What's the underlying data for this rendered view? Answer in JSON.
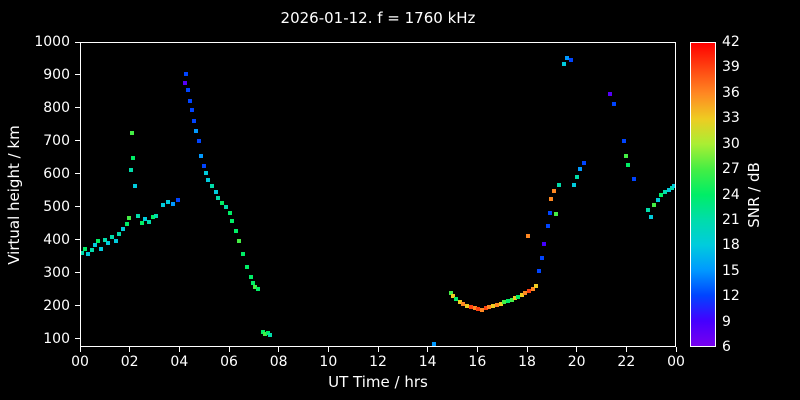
{
  "chart_data": {
    "type": "scatter",
    "title": "2026-01-12. f = 1760 kHz",
    "xlabel": "UT Time / hrs",
    "ylabel": "Virtual height / km",
    "colorbar_label": "SNR / dB",
    "xlim": [
      0,
      24
    ],
    "ylim": [
      75,
      1000
    ],
    "cb_range": [
      6,
      42
    ],
    "background": "#000000",
    "grid": false,
    "x_ticks": [
      {
        "v": 0,
        "label": "00"
      },
      {
        "v": 2,
        "label": "02"
      },
      {
        "v": 4,
        "label": "04"
      },
      {
        "v": 6,
        "label": "06"
      },
      {
        "v": 8,
        "label": "08"
      },
      {
        "v": 10,
        "label": "10"
      },
      {
        "v": 12,
        "label": "12"
      },
      {
        "v": 14,
        "label": "14"
      },
      {
        "v": 16,
        "label": "16"
      },
      {
        "v": 18,
        "label": "18"
      },
      {
        "v": 20,
        "label": "20"
      },
      {
        "v": 22,
        "label": "22"
      },
      {
        "v": 24,
        "label": "00"
      }
    ],
    "y_ticks": [
      100,
      200,
      300,
      400,
      500,
      600,
      700,
      800,
      900,
      1000
    ],
    "cb_ticks": [
      6,
      9,
      12,
      15,
      18,
      21,
      24,
      27,
      30,
      33,
      36,
      39,
      42
    ],
    "points_format": [
      "x_hours",
      "virtual_height_km",
      "snr_db"
    ],
    "points": [
      [
        0.05,
        360,
        21
      ],
      [
        0.15,
        372,
        24
      ],
      [
        0.3,
        355,
        18
      ],
      [
        0.45,
        368,
        21
      ],
      [
        0.55,
        382,
        18
      ],
      [
        0.7,
        396,
        24
      ],
      [
        0.8,
        372,
        18
      ],
      [
        0.95,
        400,
        21
      ],
      [
        1.1,
        388,
        18
      ],
      [
        1.25,
        408,
        21
      ],
      [
        1.4,
        396,
        18
      ],
      [
        1.55,
        418,
        21
      ],
      [
        1.7,
        432,
        18
      ],
      [
        1.85,
        448,
        24
      ],
      [
        1.95,
        466,
        27
      ],
      [
        2.0,
        612,
        21
      ],
      [
        2.06,
        724,
        27
      ],
      [
        2.12,
        648,
        24
      ],
      [
        2.2,
        563,
        18
      ],
      [
        2.3,
        472,
        21
      ],
      [
        2.45,
        452,
        24
      ],
      [
        2.6,
        462,
        18
      ],
      [
        2.75,
        455,
        21
      ],
      [
        2.9,
        468,
        24
      ],
      [
        3.05,
        472,
        21
      ],
      [
        3.3,
        505,
        18
      ],
      [
        3.5,
        515,
        18
      ],
      [
        3.7,
        510,
        15
      ],
      [
        3.9,
        520,
        12
      ],
      [
        4.2,
        878,
        8
      ],
      [
        4.26,
        905,
        12
      ],
      [
        4.32,
        856,
        12
      ],
      [
        4.4,
        822,
        12
      ],
      [
        4.47,
        796,
        12
      ],
      [
        4.56,
        762,
        12
      ],
      [
        4.65,
        730,
        15
      ],
      [
        4.75,
        700,
        12
      ],
      [
        4.85,
        656,
        15
      ],
      [
        4.95,
        625,
        12
      ],
      [
        5.05,
        602,
        18
      ],
      [
        5.15,
        582,
        18
      ],
      [
        5.3,
        562,
        21
      ],
      [
        5.45,
        546,
        18
      ],
      [
        5.55,
        526,
        21
      ],
      [
        5.7,
        511,
        24
      ],
      [
        5.85,
        500,
        21
      ],
      [
        6.0,
        481,
        24
      ],
      [
        6.1,
        456,
        24
      ],
      [
        6.25,
        426,
        24
      ],
      [
        6.4,
        396,
        27
      ],
      [
        6.55,
        356,
        24
      ],
      [
        6.7,
        316,
        24
      ],
      [
        6.85,
        286,
        24
      ],
      [
        6.95,
        266,
        24
      ],
      [
        7.05,
        256,
        27
      ],
      [
        7.15,
        248,
        24
      ],
      [
        7.35,
        118,
        24
      ],
      [
        7.45,
        112,
        27
      ],
      [
        7.55,
        115,
        24
      ],
      [
        7.62,
        108,
        21
      ],
      [
        14.25,
        82,
        15
      ],
      [
        14.95,
        238,
        27
      ],
      [
        15.05,
        228,
        33
      ],
      [
        15.15,
        218,
        24
      ],
      [
        15.3,
        208,
        33
      ],
      [
        15.45,
        202,
        36
      ],
      [
        15.6,
        198,
        33
      ],
      [
        15.75,
        195,
        39
      ],
      [
        15.9,
        192,
        36
      ],
      [
        16.05,
        188,
        39
      ],
      [
        16.2,
        185,
        36
      ],
      [
        16.35,
        190,
        39
      ],
      [
        16.5,
        193,
        36
      ],
      [
        16.65,
        197,
        33
      ],
      [
        16.8,
        200,
        36
      ],
      [
        16.95,
        204,
        33
      ],
      [
        17.1,
        208,
        27
      ],
      [
        17.25,
        212,
        24
      ],
      [
        17.4,
        216,
        27
      ],
      [
        17.52,
        221,
        33
      ],
      [
        17.65,
        226,
        24
      ],
      [
        17.8,
        231,
        33
      ],
      [
        17.95,
        236,
        36
      ],
      [
        18.1,
        242,
        39
      ],
      [
        18.25,
        250,
        36
      ],
      [
        18.4,
        258,
        33
      ],
      [
        18.05,
        410,
        36
      ],
      [
        18.5,
        305,
        12
      ],
      [
        18.62,
        345,
        12
      ],
      [
        18.72,
        385,
        9
      ],
      [
        18.85,
        440,
        12
      ],
      [
        18.95,
        480,
        12
      ],
      [
        19.0,
        525,
        36
      ],
      [
        19.1,
        548,
        36
      ],
      [
        19.2,
        478,
        27
      ],
      [
        19.32,
        565,
        21
      ],
      [
        19.5,
        935,
        18
      ],
      [
        19.62,
        955,
        15
      ],
      [
        19.78,
        948,
        12
      ],
      [
        19.92,
        565,
        18
      ],
      [
        20.05,
        590,
        21
      ],
      [
        20.18,
        615,
        15
      ],
      [
        20.32,
        635,
        12
      ],
      [
        21.38,
        845,
        8
      ],
      [
        21.52,
        815,
        12
      ],
      [
        21.95,
        700,
        12
      ],
      [
        22.02,
        655,
        27
      ],
      [
        22.12,
        628,
        24
      ],
      [
        22.35,
        585,
        12
      ],
      [
        22.9,
        490,
        21
      ],
      [
        23.05,
        470,
        18
      ],
      [
        23.15,
        505,
        27
      ],
      [
        23.3,
        520,
        18
      ],
      [
        23.45,
        535,
        24
      ],
      [
        23.6,
        545,
        21
      ],
      [
        23.75,
        552,
        18
      ],
      [
        23.88,
        558,
        21
      ],
      [
        23.97,
        562,
        18
      ]
    ]
  },
  "colormap": [
    {
      "v": 6,
      "c": "#7700ee"
    },
    {
      "v": 9,
      "c": "#4400ff"
    },
    {
      "v": 12,
      "c": "#0044ff"
    },
    {
      "v": 15,
      "c": "#0099ff"
    },
    {
      "v": 18,
      "c": "#00ccdd"
    },
    {
      "v": 21,
      "c": "#00ddaa"
    },
    {
      "v": 24,
      "c": "#00ee66"
    },
    {
      "v": 27,
      "c": "#44ee44"
    },
    {
      "v": 30,
      "c": "#aaee33"
    },
    {
      "v": 33,
      "c": "#eecc22"
    },
    {
      "v": 36,
      "c": "#ff8822"
    },
    {
      "v": 39,
      "c": "#ff4411"
    },
    {
      "v": 42,
      "c": "#ff0000"
    }
  ],
  "layout_colors": {
    "background": "#000000",
    "foreground": "#ffffff"
  }
}
